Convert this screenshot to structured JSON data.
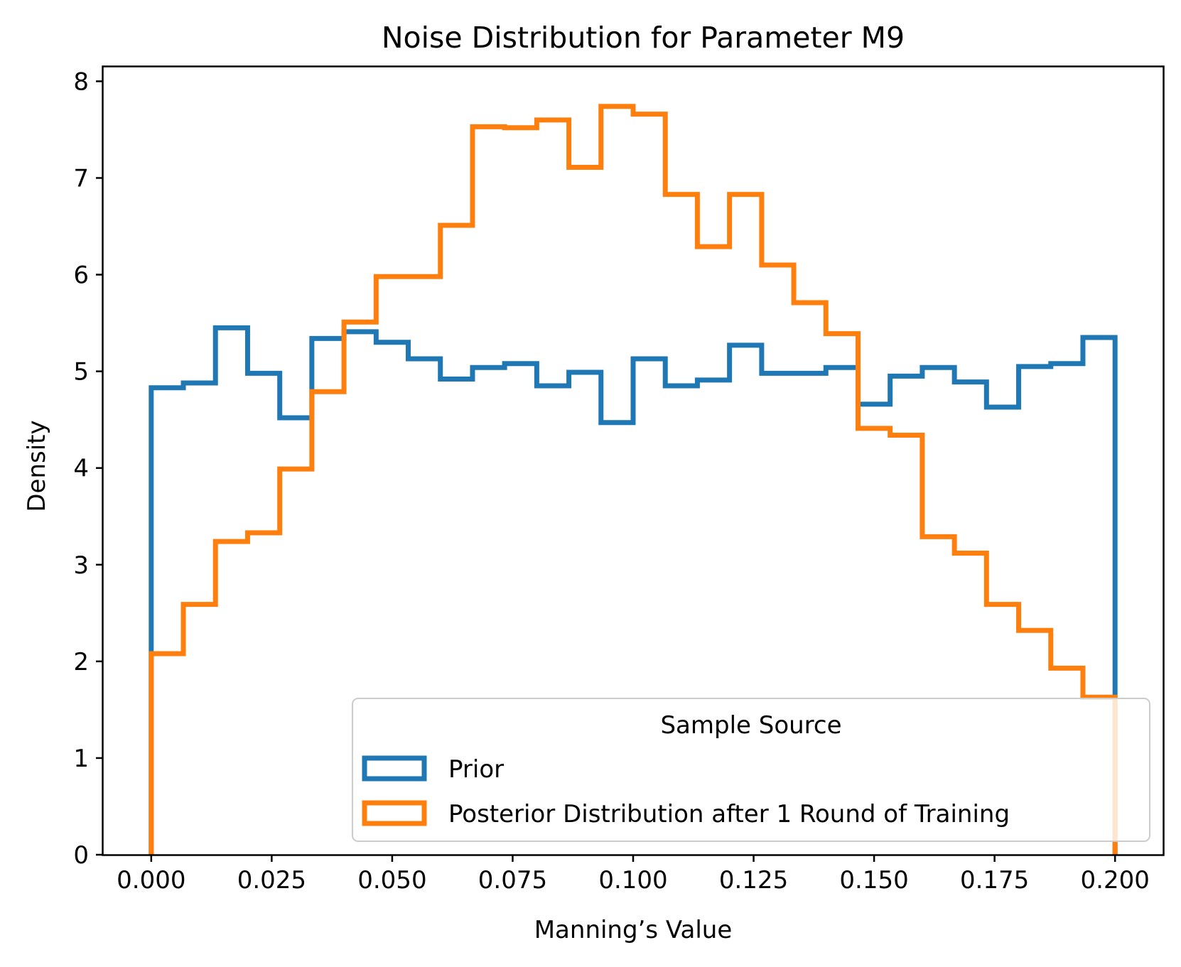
{
  "chart_data": {
    "type": "histogram-step",
    "title": "Noise Distribution for Parameter M9",
    "xlabel": "Manning’s Value",
    "ylabel": "Density",
    "xlim": [
      -0.01,
      0.21
    ],
    "ylim": [
      0,
      8.15
    ],
    "x_ticks": [
      0.0,
      0.025,
      0.05,
      0.075,
      0.1,
      0.125,
      0.15,
      0.175,
      0.2
    ],
    "x_tick_labels": [
      "0.000",
      "0.025",
      "0.050",
      "0.075",
      "0.100",
      "0.125",
      "0.150",
      "0.175",
      "0.200"
    ],
    "y_ticks": [
      0,
      1,
      2,
      3,
      4,
      5,
      6,
      7,
      8
    ],
    "y_tick_labels": [
      "0",
      "1",
      "2",
      "3",
      "4",
      "5",
      "6",
      "7",
      "8"
    ],
    "grid": false,
    "bin_edges": [
      0.0,
      0.00667,
      0.01333,
      0.02,
      0.02667,
      0.03333,
      0.04,
      0.04667,
      0.05333,
      0.06,
      0.06667,
      0.07333,
      0.08,
      0.08667,
      0.09333,
      0.1,
      0.10667,
      0.11333,
      0.12,
      0.12667,
      0.13333,
      0.14,
      0.14667,
      0.15333,
      0.16,
      0.16667,
      0.17333,
      0.18,
      0.18667,
      0.19333,
      0.2
    ],
    "series": [
      {
        "name": "Prior",
        "color": "#1f77b4",
        "values": [
          4.83,
          4.88,
          5.45,
          4.98,
          4.52,
          5.34,
          5.41,
          5.3,
          5.13,
          4.92,
          5.04,
          5.08,
          4.85,
          4.99,
          4.47,
          5.13,
          4.85,
          4.91,
          5.27,
          4.98,
          4.98,
          5.04,
          4.66,
          4.95,
          5.04,
          4.89,
          4.63,
          5.05,
          5.08,
          5.35
        ]
      },
      {
        "name": "Posterior Distribution after 1 Round of Training",
        "color": "#ff7f0e",
        "values": [
          2.08,
          2.59,
          3.24,
          3.33,
          3.99,
          4.79,
          5.51,
          5.98,
          5.98,
          6.51,
          7.53,
          7.52,
          7.6,
          7.11,
          7.74,
          7.66,
          6.83,
          6.29,
          6.83,
          6.1,
          5.71,
          5.39,
          4.41,
          4.34,
          3.29,
          3.12,
          2.59,
          2.32,
          1.93,
          1.63
        ]
      }
    ],
    "legend": {
      "title": "Sample Source",
      "placement": "lower-right"
    }
  }
}
